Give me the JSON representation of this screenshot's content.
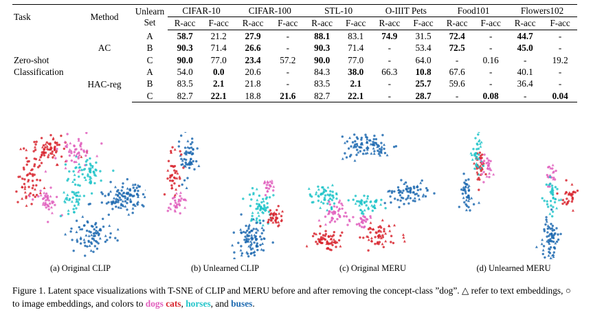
{
  "table": {
    "head": {
      "task": "Task",
      "method": "Method",
      "unlearn_set": "Unlearn Set",
      "datasets": [
        "CIFAR-10",
        "CIFAR-100",
        "STL-10",
        "O-IIIT Pets",
        "Food101",
        "Flowers102"
      ],
      "racc": "R-acc",
      "facc": "F-acc"
    },
    "task_label": "Zero-shot Classification",
    "groups": [
      {
        "method": "AC",
        "rows": [
          {
            "set": "A",
            "cells": [
              {
                "v": "58.7",
                "b": true
              },
              {
                "v": "21.2"
              },
              {
                "v": "27.9",
                "b": true
              },
              {
                "v": "-"
              },
              {
                "v": "88.1",
                "b": true
              },
              {
                "v": "83.1"
              },
              {
                "v": "74.9",
                "b": true
              },
              {
                "v": "31.5"
              },
              {
                "v": "72.4",
                "b": true
              },
              {
                "v": "-"
              },
              {
                "v": "44.7",
                "b": true
              },
              {
                "v": "-"
              }
            ]
          },
          {
            "set": "B",
            "cells": [
              {
                "v": "90.3",
                "b": true
              },
              {
                "v": "71.4"
              },
              {
                "v": "26.6",
                "b": true
              },
              {
                "v": "-"
              },
              {
                "v": "90.3",
                "b": true
              },
              {
                "v": "71.4"
              },
              {
                "v": "-"
              },
              {
                "v": "53.4"
              },
              {
                "v": "72.5",
                "b": true
              },
              {
                "v": "-"
              },
              {
                "v": "45.0",
                "b": true
              },
              {
                "v": "-"
              }
            ]
          },
          {
            "set": "C",
            "cells": [
              {
                "v": "90.0",
                "b": true
              },
              {
                "v": "77.0"
              },
              {
                "v": "23.4",
                "b": true
              },
              {
                "v": "57.2"
              },
              {
                "v": "90.0",
                "b": true
              },
              {
                "v": "77.0"
              },
              {
                "v": "-"
              },
              {
                "v": "64.0"
              },
              {
                "v": "-"
              },
              {
                "v": "0.16"
              },
              {
                "v": "-"
              },
              {
                "v": "19.2"
              }
            ]
          }
        ]
      },
      {
        "method": "HAC-reg",
        "rows": [
          {
            "set": "A",
            "cells": [
              {
                "v": "54.0"
              },
              {
                "v": "0.0",
                "b": true
              },
              {
                "v": "20.6"
              },
              {
                "v": "-"
              },
              {
                "v": "84.3"
              },
              {
                "v": "38.0",
                "b": true
              },
              {
                "v": "66.3"
              },
              {
                "v": "10.8",
                "b": true
              },
              {
                "v": "67.6"
              },
              {
                "v": "-"
              },
              {
                "v": "40.1"
              },
              {
                "v": "-"
              }
            ]
          },
          {
            "set": "B",
            "cells": [
              {
                "v": "83.5"
              },
              {
                "v": "2.1",
                "b": true
              },
              {
                "v": "21.8"
              },
              {
                "v": "-"
              },
              {
                "v": "83.5"
              },
              {
                "v": "2.1",
                "b": true
              },
              {
                "v": "-"
              },
              {
                "v": "25.7",
                "b": true
              },
              {
                "v": "59.6"
              },
              {
                "v": "-"
              },
              {
                "v": "36.4"
              },
              {
                "v": "-"
              }
            ]
          },
          {
            "set": "C",
            "cells": [
              {
                "v": "82.7"
              },
              {
                "v": "22.1",
                "b": true
              },
              {
                "v": "18.8"
              },
              {
                "v": "21.6",
                "b": true
              },
              {
                "v": "82.7"
              },
              {
                "v": "22.1",
                "b": true
              },
              {
                "v": "-"
              },
              {
                "v": "28.7",
                "b": true
              },
              {
                "v": "-"
              },
              {
                "v": "0.08",
                "b": true
              },
              {
                "v": "-"
              },
              {
                "v": "0.04",
                "b": true
              }
            ]
          }
        ]
      }
    ]
  },
  "panels": [
    {
      "caption": "(a) Original CLIP"
    },
    {
      "caption": "(b) Unlearned CLIP"
    },
    {
      "caption": "(c) Original MERU"
    },
    {
      "caption": "(d) Unlearned MERU"
    }
  ],
  "colors": {
    "dogs": "#e15fbd",
    "cats": "#d8262f",
    "horses": "#21c4c9",
    "buses": "#1e6ab0"
  },
  "figure_caption": {
    "main": "Figure 1. Latent space visualizations with T-SNE of CLIP and MERU before and after removing the concept-class ”dog”. △ refer to text embeddings, ○ to image embeddings, and colors to ",
    "dogs": "dogs",
    "cats": "cats",
    "horses": "horses",
    "buses": "buses",
    "and": "and",
    "comma": ",",
    "end": "."
  }
}
